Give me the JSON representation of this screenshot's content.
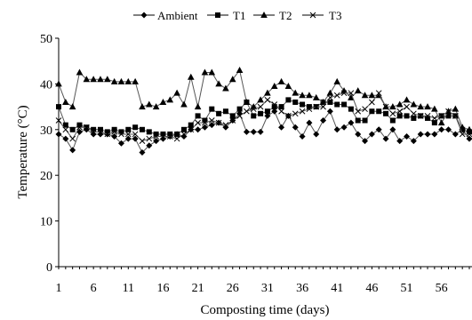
{
  "chart_data": {
    "type": "line",
    "title": "",
    "xlabel": "Composting time (days)",
    "ylabel": "Temperature (°C)",
    "ylim": [
      0,
      50
    ],
    "xlim": [
      1,
      60
    ],
    "x_ticks": [
      1,
      6,
      11,
      16,
      21,
      26,
      31,
      36,
      41,
      46,
      51,
      56
    ],
    "y_ticks": [
      0,
      10,
      20,
      30,
      40,
      50
    ],
    "legend_position": "top-center",
    "grid": false,
    "x": [
      1,
      2,
      3,
      4,
      5,
      6,
      7,
      8,
      9,
      10,
      11,
      12,
      13,
      14,
      15,
      16,
      17,
      18,
      19,
      20,
      21,
      22,
      23,
      24,
      25,
      26,
      27,
      28,
      29,
      30,
      31,
      32,
      33,
      34,
      35,
      36,
      37,
      38,
      39,
      40,
      41,
      42,
      43,
      44,
      45,
      46,
      47,
      48,
      49,
      50,
      51,
      52,
      53,
      54,
      55,
      56,
      57,
      58,
      59,
      60
    ],
    "series": [
      {
        "name": "Ambient",
        "marker": "diamond",
        "color": "#000000",
        "values": [
          29,
          28,
          25.5,
          29.5,
          30,
          29,
          29,
          29,
          28.5,
          27,
          28,
          28,
          25,
          26.5,
          27.5,
          28,
          28.5,
          29,
          28.5,
          30,
          30,
          30.5,
          31,
          31.5,
          30.5,
          32,
          33.5,
          29.5,
          29.5,
          29.5,
          33,
          34,
          30.5,
          33,
          30.5,
          28.5,
          31.5,
          29,
          32,
          34,
          30,
          30.5,
          31.5,
          29,
          27.5,
          29,
          30,
          28,
          30,
          27.5,
          28.5,
          27.5,
          29,
          29,
          29,
          30,
          30,
          29,
          30,
          28
        ]
      },
      {
        "name": "T1",
        "marker": "square",
        "color": "#000000",
        "values": [
          35,
          31,
          30,
          31,
          30.5,
          30,
          30,
          29.5,
          30,
          29.5,
          30,
          30.5,
          30,
          29.5,
          29,
          29,
          29,
          29,
          30,
          31,
          33,
          32,
          34.5,
          33.5,
          34,
          33,
          34.5,
          36,
          33,
          33.5,
          34,
          35,
          35,
          36.5,
          36,
          35.5,
          35,
          35,
          36,
          36,
          35.5,
          35.5,
          34.5,
          32,
          32,
          34,
          34,
          33.5,
          32,
          33,
          33,
          32.5,
          33,
          32.5,
          31.5,
          33,
          33,
          33,
          30,
          29.5
        ]
      },
      {
        "name": "T2",
        "marker": "triangle",
        "color": "#000000",
        "values": [
          40,
          36,
          35,
          42.5,
          41,
          41,
          41,
          41,
          40.5,
          40.5,
          40.5,
          40.5,
          35,
          35.5,
          35,
          36,
          36.5,
          38,
          35.5,
          41.5,
          35,
          42.5,
          42.5,
          40,
          39,
          41,
          43,
          36,
          35,
          36.5,
          38,
          39.5,
          40.5,
          39.5,
          38,
          37.5,
          37.5,
          37,
          36,
          38,
          40.5,
          38.5,
          37,
          38.5,
          37.5,
          37.5,
          37.5,
          35,
          35,
          35.5,
          36.5,
          35.5,
          35,
          35,
          34.5,
          31.5,
          34,
          34.5,
          30.5,
          30
        ]
      },
      {
        "name": "T3",
        "marker": "x",
        "color": "#000000",
        "values": [
          32,
          30,
          28,
          30.5,
          30.5,
          29.5,
          29.5,
          29,
          29.5,
          29,
          29,
          29,
          27.5,
          28,
          28.5,
          28.5,
          28.5,
          28,
          29,
          30,
          31.5,
          31.5,
          32,
          31.5,
          31,
          32,
          33,
          34,
          34.5,
          35,
          36.5,
          35.5,
          34,
          33,
          33.5,
          34,
          34.5,
          35,
          35,
          37,
          37.5,
          38,
          38,
          34,
          34.5,
          36,
          38,
          35,
          33.5,
          34,
          35,
          33.5,
          33,
          33,
          32.5,
          33,
          34,
          33,
          29,
          29
        ]
      }
    ]
  }
}
